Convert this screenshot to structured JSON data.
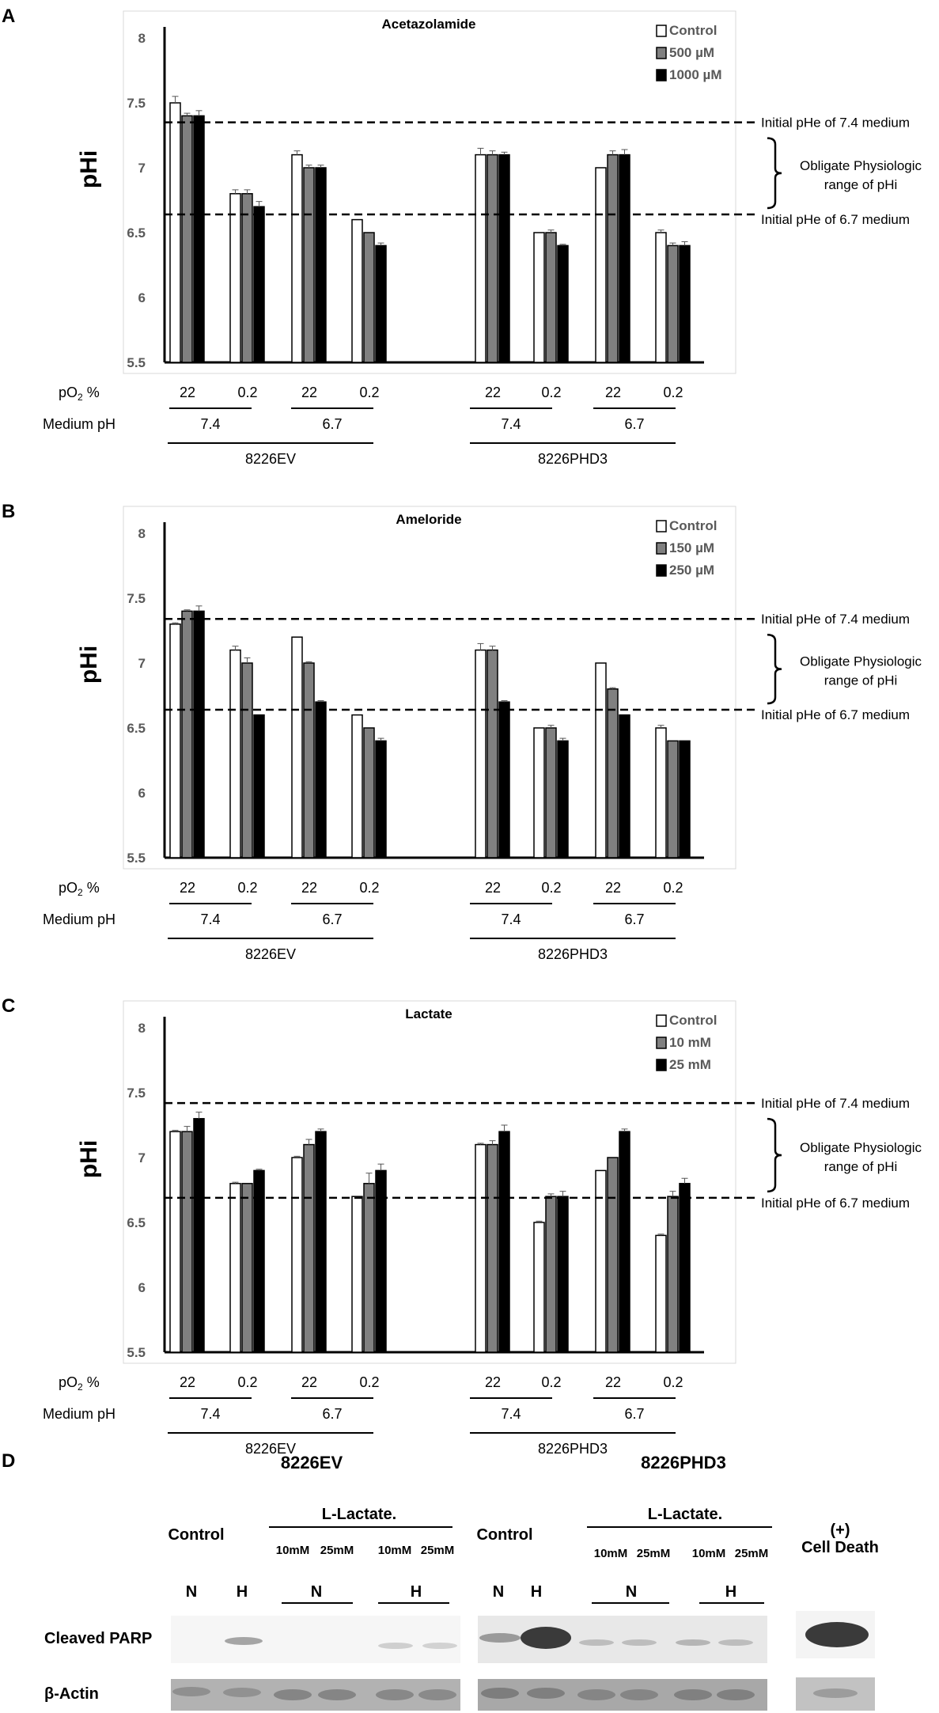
{
  "figure": {
    "panels": [
      "A",
      "B",
      "C",
      "D"
    ],
    "row_labels": {
      "po2": "pO",
      "po2_sub": "2",
      "po2_suffix": " %",
      "medium_ph": "Medium pH"
    },
    "line_labels": {
      "high": "Initial pHe of 7.4 medium",
      "low": "Initial pHe of 6.7 medium",
      "range_line1": "Obligate Physiologic",
      "range_line2": "range of pHi"
    },
    "po2_values": [
      "22",
      "0.2",
      "22",
      "0.2",
      "22",
      "0.2",
      "22",
      "0.2"
    ],
    "medium_values": [
      "7.4",
      "6.7",
      "7.4",
      "6.7"
    ],
    "cell_lines": [
      "8226EV",
      "8226PHD3"
    ]
  },
  "colors": {
    "control": "#ffffff",
    "mid": "#808080",
    "high": "#000000",
    "frame": "#d9d9d9"
  },
  "chart_data": [
    {
      "type": "bar",
      "title": "Acetazolamide",
      "ylabel": "pHi",
      "ylim": [
        5.5,
        8
      ],
      "yticks": [
        "5.5",
        "6",
        "6.5",
        "7",
        "7.5",
        "8"
      ],
      "reference_lines": [
        7.35,
        6.64
      ],
      "series": [
        {
          "name": "Control",
          "values": [
            7.5,
            6.8,
            7.1,
            6.6,
            7.1,
            6.5,
            7.0,
            6.5
          ],
          "errors": [
            0.05,
            0.03,
            0.03,
            0,
            0.05,
            0,
            0,
            0.02
          ]
        },
        {
          "name": "500 µM",
          "values": [
            7.4,
            6.8,
            7.0,
            6.5,
            7.1,
            6.5,
            7.1,
            6.4
          ],
          "errors": [
            0.02,
            0.03,
            0.02,
            0,
            0.03,
            0.02,
            0.03,
            0.02
          ]
        },
        {
          "name": "1000 µM",
          "values": [
            7.4,
            6.7,
            7.0,
            6.4,
            7.1,
            6.4,
            7.1,
            6.4
          ],
          "errors": [
            0.04,
            0.04,
            0.02,
            0.02,
            0.02,
            0.01,
            0.04,
            0.03
          ]
        }
      ]
    },
    {
      "type": "bar",
      "title": "Ameloride",
      "ylabel": "pHi",
      "ylim": [
        5.5,
        8
      ],
      "yticks": [
        "5.5",
        "6",
        "6.5",
        "7",
        "7.5",
        "8"
      ],
      "reference_lines": [
        7.34,
        6.64
      ],
      "series": [
        {
          "name": "Control",
          "values": [
            7.3,
            7.1,
            7.2,
            6.6,
            7.1,
            6.5,
            7.0,
            6.5
          ],
          "errors": [
            0.01,
            0.03,
            0,
            0,
            0.05,
            0,
            0,
            0.02
          ]
        },
        {
          "name": "150 µM",
          "values": [
            7.4,
            7.0,
            7.0,
            6.5,
            7.1,
            6.5,
            6.8,
            6.4
          ],
          "errors": [
            0.01,
            0.04,
            0.01,
            0,
            0.03,
            0.02,
            0.01,
            0
          ]
        },
        {
          "name": "250 µM",
          "values": [
            7.4,
            6.6,
            6.7,
            6.4,
            6.7,
            6.4,
            6.6,
            6.4
          ],
          "errors": [
            0.04,
            0,
            0.01,
            0.02,
            0.01,
            0.02,
            0,
            0
          ]
        }
      ]
    },
    {
      "type": "bar",
      "title": "Lactate",
      "ylabel": "pHi",
      "ylim": [
        5.5,
        8
      ],
      "yticks": [
        "5.5",
        "6",
        "6.5",
        "7",
        "7.5",
        "8"
      ],
      "reference_lines": [
        7.42,
        6.69
      ],
      "series": [
        {
          "name": "Control",
          "values": [
            7.2,
            6.8,
            7.0,
            6.7,
            7.1,
            6.5,
            6.9,
            6.4
          ],
          "errors": [
            0.01,
            0.01,
            0.01,
            0,
            0.01,
            0.01,
            0,
            0.01
          ]
        },
        {
          "name": "10 mM",
          "values": [
            7.2,
            6.8,
            7.1,
            6.8,
            7.1,
            6.7,
            7.0,
            6.7
          ],
          "errors": [
            0.04,
            0,
            0.04,
            0.08,
            0.03,
            0.02,
            0,
            0.04
          ]
        },
        {
          "name": "25 mM",
          "values": [
            7.3,
            6.9,
            7.2,
            6.9,
            7.2,
            6.7,
            7.2,
            6.8
          ],
          "errors": [
            0.05,
            0.01,
            0.02,
            0.05,
            0.05,
            0.04,
            0.02,
            0.04
          ]
        }
      ]
    }
  ],
  "blot": {
    "panel": "D",
    "group1_title": "8226EV",
    "group2_title": "8226PHD3",
    "control_label": "Control",
    "lactate_label": "L-Lactate.",
    "dose_10": "10mM",
    "dose_25": "25mM",
    "n_label": "N",
    "h_label": "H",
    "positive_line1": "(+)",
    "positive_line2": "Cell Death",
    "row1_label": "Cleaved PARP",
    "row2_label": "β-Actin"
  }
}
